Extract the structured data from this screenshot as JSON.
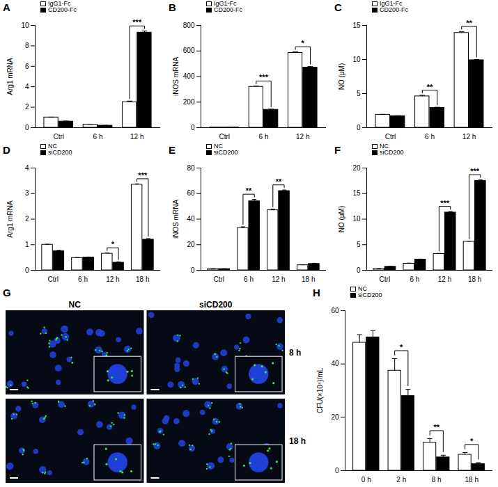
{
  "chart_data": [
    {
      "type": "bar",
      "title": "A",
      "y_label": "Arg1 mRNA",
      "categories": [
        "Ctrl",
        "6 h",
        "12 h"
      ],
      "series": [
        {
          "name": "IgG1-Fc",
          "color": "#ffffff",
          "values": [
            1.0,
            0.3,
            2.5
          ],
          "errors": [
            0.03,
            0.03,
            0.1
          ]
        },
        {
          "name": "CD200-Fc",
          "color": "#000000",
          "values": [
            0.6,
            0.2,
            9.3
          ],
          "errors": [
            0.05,
            0.03,
            0.15
          ]
        }
      ],
      "ylim": [
        0,
        10
      ],
      "yticks": [
        0,
        2,
        4,
        6,
        8,
        10
      ],
      "grid": false,
      "legend": "top-left",
      "annotations": [
        {
          "category": "12 h",
          "label": "***"
        }
      ]
    },
    {
      "type": "bar",
      "title": "B",
      "y_label": "iNOS mRNA",
      "categories": [
        "Ctrl",
        "6 h",
        "12 h"
      ],
      "series": [
        {
          "name": "IgG1-Fc",
          "color": "#ffffff",
          "values": [
            2,
            320,
            585
          ],
          "errors": [
            0,
            5,
            8
          ]
        },
        {
          "name": "CD200-Fc",
          "color": "#000000",
          "values": [
            2,
            140,
            470
          ],
          "errors": [
            0,
            5,
            8
          ]
        }
      ],
      "ylim": [
        0,
        800
      ],
      "yticks": [
        0,
        200,
        400,
        600,
        800
      ],
      "grid": false,
      "legend": "top-left",
      "annotations": [
        {
          "category": "6 h",
          "label": "***"
        },
        {
          "category": "12 h",
          "label": "*"
        }
      ]
    },
    {
      "type": "bar",
      "title": "C",
      "y_label": "NO (μM)",
      "categories": [
        "Ctrl",
        "6 h",
        "12 h"
      ],
      "series": [
        {
          "name": "IgG1-Fc",
          "color": "#ffffff",
          "values": [
            1.9,
            4.6,
            13.9
          ],
          "errors": [
            0.05,
            0.15,
            0.2
          ]
        },
        {
          "name": "CD200-Fc",
          "color": "#000000",
          "values": [
            1.7,
            2.9,
            9.9
          ],
          "errors": [
            0.05,
            0.1,
            0.1
          ]
        }
      ],
      "ylim": [
        0,
        15
      ],
      "yticks": [
        0,
        5,
        10,
        15
      ],
      "grid": false,
      "legend": "top-left",
      "annotations": [
        {
          "category": "6 h",
          "label": "**"
        },
        {
          "category": "12 h",
          "label": "**"
        }
      ]
    },
    {
      "type": "bar",
      "title": "D",
      "y_label": "Arg1 mRNA",
      "categories": [
        "Ctrl",
        "6 h",
        "12 h",
        "18 h"
      ],
      "series": [
        {
          "name": "NC",
          "color": "#ffffff",
          "values": [
            1.0,
            0.48,
            0.65,
            3.35
          ],
          "errors": [
            0.02,
            0.02,
            0.03,
            0.03
          ]
        },
        {
          "name": "siCD200",
          "color": "#000000",
          "values": [
            0.75,
            0.5,
            0.3,
            1.2
          ],
          "errors": [
            0.03,
            0.02,
            0.03,
            0.04
          ]
        }
      ],
      "ylim": [
        0,
        4
      ],
      "yticks": [
        0,
        1,
        2,
        3,
        4
      ],
      "grid": false,
      "legend": "top-left",
      "annotations": [
        {
          "category": "12 h",
          "label": "*"
        },
        {
          "category": "18 h",
          "label": "***"
        }
      ]
    },
    {
      "type": "bar",
      "title": "E",
      "y_label": "iNOS mRNA",
      "categories": [
        "Ctrl",
        "6 h",
        "12 h",
        "18 h"
      ],
      "series": [
        {
          "name": "NC",
          "color": "#ffffff",
          "values": [
            1,
            33,
            47,
            4
          ],
          "errors": [
            0.2,
            1,
            0.8,
            0.3
          ]
        },
        {
          "name": "siCD200",
          "color": "#000000",
          "values": [
            1,
            54,
            62,
            5
          ],
          "errors": [
            0.2,
            1.5,
            0.8,
            0.5
          ]
        }
      ],
      "ylim": [
        0,
        80
      ],
      "yticks": [
        0,
        20,
        40,
        60,
        80
      ],
      "grid": false,
      "legend": "top-left",
      "annotations": [
        {
          "category": "6 h",
          "label": "**"
        },
        {
          "category": "12 h",
          "label": "**"
        }
      ]
    },
    {
      "type": "bar",
      "title": "F",
      "y_label": "NO (μM)",
      "categories": [
        "Ctrl",
        "6 h",
        "12 h",
        "18 h"
      ],
      "series": [
        {
          "name": "NC",
          "color": "#ffffff",
          "values": [
            0.3,
            1.3,
            3.2,
            5.6
          ],
          "errors": [
            0.05,
            0.1,
            0.1,
            0.1
          ]
        },
        {
          "name": "siCD200",
          "color": "#000000",
          "values": [
            0.7,
            2.1,
            11.3,
            17.5
          ],
          "errors": [
            0.05,
            0.1,
            0.2,
            0.2
          ]
        }
      ],
      "ylim": [
        0,
        20
      ],
      "yticks": [
        0,
        5,
        10,
        15,
        20
      ],
      "grid": false,
      "legend": "top-left",
      "annotations": [
        {
          "category": "12 h",
          "label": "***"
        },
        {
          "category": "18 h",
          "label": "***"
        }
      ]
    },
    {
      "type": "bar",
      "title": "H",
      "y_label": "CFU(×10⁴)/mL",
      "categories": [
        "0 h",
        "2 h",
        "8 h",
        "18 h"
      ],
      "series": [
        {
          "name": "NC",
          "color": "#ffffff",
          "values": [
            48,
            37.5,
            10.5,
            6
          ],
          "errors": [
            3,
            4.5,
            1.5,
            0.8
          ]
        },
        {
          "name": "siCD200",
          "color": "#000000",
          "values": [
            50,
            28,
            5,
            2.5
          ],
          "errors": [
            2.5,
            2.5,
            0.8,
            0.5
          ]
        }
      ],
      "ylim": [
        0,
        60
      ],
      "yticks": [
        0,
        20,
        40,
        60
      ],
      "grid": false,
      "legend": "top-left",
      "annotations": [
        {
          "category": "2 h",
          "label": "*"
        },
        {
          "category": "8 h",
          "label": "**"
        },
        {
          "category": "18 h",
          "label": "*"
        }
      ]
    }
  ],
  "image_panel": {
    "title": "G",
    "columns": [
      "NC",
      "siCD200"
    ],
    "rows": [
      "8 h",
      "18 h"
    ]
  }
}
